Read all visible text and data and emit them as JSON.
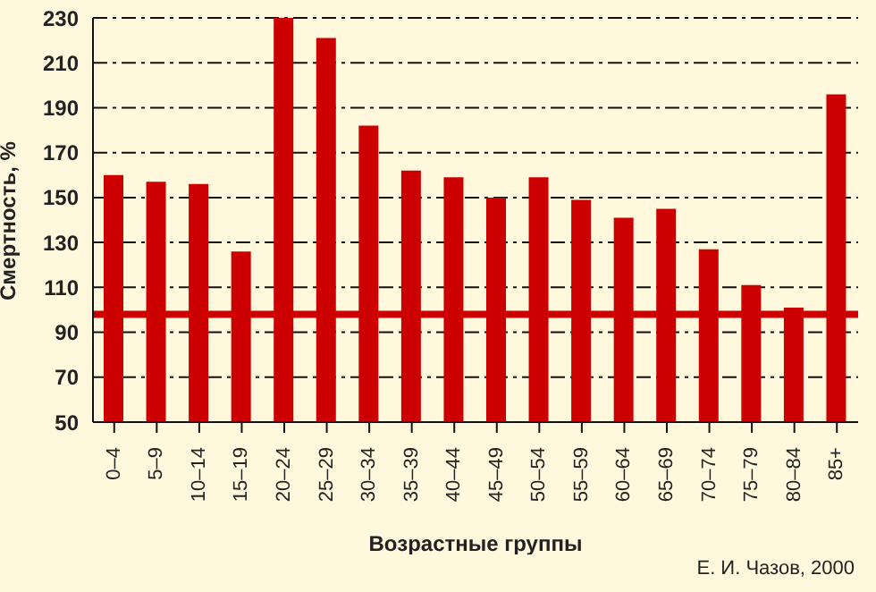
{
  "chart_data": {
    "type": "bar",
    "xlabel": "Возрастные группы",
    "ylabel": "Смертность, %",
    "categories": [
      "0–4",
      "5–9",
      "10–14",
      "15–19",
      "20–24",
      "25–29",
      "30–34",
      "35–39",
      "40–44",
      "45–49",
      "50–54",
      "55–59",
      "60–64",
      "65–69",
      "70–74",
      "75–79",
      "80–84",
      "85+"
    ],
    "values": [
      160,
      157,
      156,
      126,
      230,
      221,
      182,
      162,
      159,
      150,
      159,
      149,
      141,
      145,
      127,
      111,
      101,
      196
    ],
    "color": "#cc0000",
    "ylim": [
      50,
      230
    ],
    "yticks": [
      50,
      70,
      90,
      110,
      130,
      150,
      170,
      190,
      210,
      230
    ],
    "grid": "y",
    "ref_lines": [
      {
        "axis": "y",
        "value": 98,
        "color": "#cc0000"
      }
    ],
    "annotations": [
      "Е. И. Чазов, 2000"
    ]
  }
}
